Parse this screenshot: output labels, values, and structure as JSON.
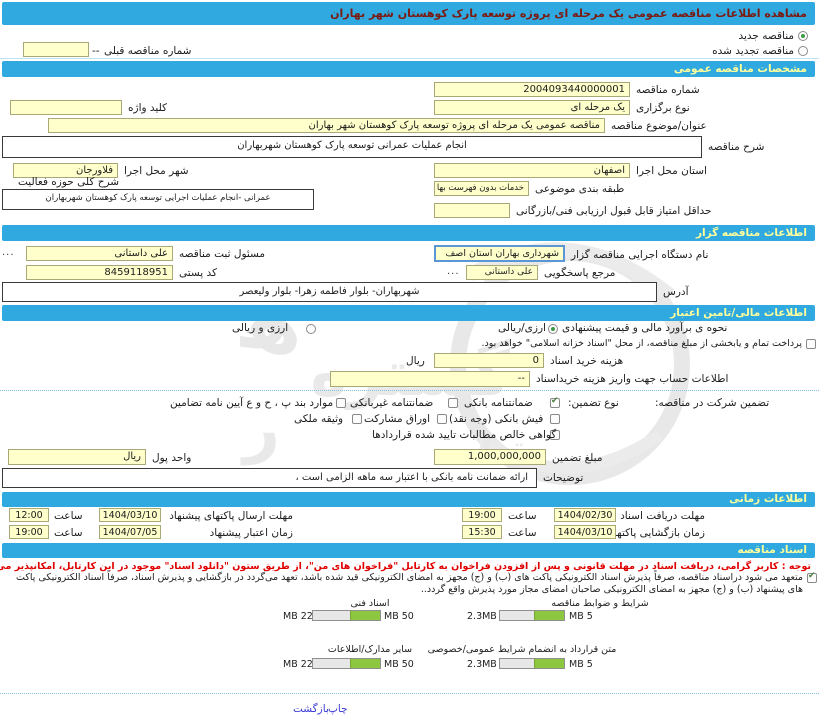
{
  "page": {
    "title": "مشاهده اطلاعات مناقصه عمومی یک مرحله ای پروژه توسعه پارک کوهستان شهر بهاران",
    "print_label": "چاپ",
    "back_label": "بازگشت",
    "ellipsis": "..."
  },
  "colors": {
    "banner_blue": "#2FA9E0",
    "banner_title": "#7B1A10",
    "banner_section_text": "#FFFF9C",
    "field_yellow": "#FFFFCC",
    "notice_red": "#E00000",
    "bar_green": "#8DC63F"
  },
  "tender_type": {
    "new_label": "مناقصه جدید",
    "new_selected": true,
    "renewed_label": "مناقصه تجدید شده",
    "renewed_selected": false,
    "previous_number_label": "شماره مناقصه قبلی",
    "previous_number_value": "--"
  },
  "specs": {
    "header": "مشخصات مناقصه عمومی",
    "number_label": "شماره مناقصه",
    "number_value": "2004093440000001",
    "type_label": "نوع برگزاری",
    "type_value": "یک مرحله ای",
    "keyword_label": "کلید واژه",
    "keyword_value": "",
    "subject_label": "عنوان/موضوع مناقصه",
    "subject_value": "مناقصه عمومی یک مرحله ای پروژه توسعه پارک کوهستان شهر بهاران",
    "desc_label": "شرح مناقصه",
    "desc_value": "انجام عملیات عمرانی توسعه پارک کوهستان شهربهاران",
    "province_label": "استان محل اجرا",
    "province_value": "اصفهان",
    "city_label": "شهر محل اجرا",
    "city_value": "فلاورجان",
    "category_label": "طبقه بندی موضوعی",
    "category_value": "خدمات بدون فهرست بها",
    "activity_label": "شرح کلی حوزه فعالیت",
    "activity_value": "عمرانی -انجام عملیات اجرایی توسعه پارک کوهستان شهربهاران",
    "min_score_label": "حداقل امتیاز قابل قبول ارزیابی فنی/بازرگانی",
    "min_score_value": ""
  },
  "agency": {
    "header": "اطلاعات مناقصه گزار",
    "name_label": "نام دستگاه اجرایی مناقصه گزار",
    "name_value": "شهرداری بهاران استان اصف",
    "registrar_label": "مسئول ثبت مناقصه",
    "registrar_value": "علی داستانی",
    "contact_label": "مرجع پاسخگویی",
    "contact_value": "علی داستانی",
    "postal_label": "کد پستی",
    "postal_value": "8459118951",
    "address_label": "آدرس",
    "address_value": "شهربهاران- بلوار فاطمه زهرا- بلوار ولیعصر"
  },
  "financial": {
    "header": "اطلاعات مالی/تامین اعتبار",
    "estimate_label": "نحوه ی برآورد مالی و قیمت پیشنهادی",
    "option_rial": {
      "label": "ارزی/ریالی",
      "selected": true
    },
    "option_both": {
      "label": "ارزی و ریالی",
      "selected": false
    },
    "treasury_note": {
      "label": "پرداخت تمام و یابخشی از مبلغ مناقصه، از محل \"اسناد خزانه اسلامی\" خواهد بود.",
      "checked": false
    },
    "doc_cost_label": "هزینه خرید اسناد",
    "doc_cost_value": "0",
    "doc_cost_unit": "ریال",
    "account_label": "اطلاعات حساب جهت واریز هزینه خریداسناد",
    "account_value": "--"
  },
  "guarantee": {
    "participation_label": "تضمین شرکت در مناقصه:",
    "type_label": "نوع تضمین:",
    "options": [
      {
        "label": "ضمانتنامه بانکی",
        "checked": true
      },
      {
        "label": "ضمانتنامه غیربانکی",
        "checked": false
      },
      {
        "label": "موارد بند پ ، ح و ع آیین نامه تضامین",
        "checked": false
      },
      {
        "label": "فیش بانکی (وجه نقد)",
        "checked": false
      },
      {
        "label": "اوراق مشارکت",
        "checked": false
      },
      {
        "label": "وثیقه ملکی",
        "checked": false
      },
      {
        "label": "گواهی خالص مطالبات تایید شده قراردادها",
        "checked": false
      }
    ],
    "amount_label": "مبلغ تضمین",
    "amount_value": "1,000,000,000",
    "currency_label": "واحد پول",
    "currency_value": "ریال",
    "notes_label": "توضیحات",
    "notes_value": "ارائه ضمانت نامه بانکی با اعتبار سه ماهه الزامی است ،"
  },
  "schedule": {
    "header": "اطلاعات زمانی",
    "hour_label": "ساعت",
    "rows": [
      {
        "label": "مهلت دریافت اسناد",
        "date": "1404/02/30",
        "time": "19:00"
      },
      {
        "label": "مهلت ارسال پاکتهای پیشنهاد",
        "date": "1404/03/10",
        "time": "12:00"
      },
      {
        "label": "زمان بازگشایی پاکتها",
        "date": "1404/03/10",
        "time": "15:30"
      },
      {
        "label": "زمان اعتبار پیشنهاد",
        "date": "1404/07/05",
        "time": "19:00"
      }
    ]
  },
  "documents": {
    "header": "اسناد مناقصه",
    "notice": "توجه : کاربر گرامی، دریافت اسناد در مهلت قانونی و پس از افزودن فراخوان به کارتابل \"فراخوان های من\"، از طریق ستون \"دانلود اسناد\" موجود در این کارتابل، امکانپذیر می‌باشد.",
    "commitment": {
      "checked": true,
      "text": "متعهد می شود دراسناد مناقصه، صرفاً پذیرش اسناد الکترونیکی پاکت های (ب) و (ج) مجهز به امضای الکترونیکی قید شده باشد، تعهد می‌گردد در بازگشایی و پذیرش اسناد، صرفاً اسناد الکترونیکی پاکت های پیشنهاد (ب) و (ج) مجهز به امضای الکترونیکی صاحبان امضای مجاز مورد پذیرش واقع گردد.."
    },
    "uploads": [
      {
        "label": "شرایط و ضوابط مناقصه",
        "used": "2.3MB",
        "max": "5 MB",
        "pct": 46
      },
      {
        "label": "اسناد فنی",
        "used": "22 MB",
        "max": "50 MB",
        "pct": 44
      },
      {
        "label": "متن قرارداد به انضمام شرایط عمومی/خصوصی",
        "used": "2.3MB",
        "max": "5 MB",
        "pct": 46
      },
      {
        "label": "سایر مدارک/اطلاعات",
        "used": "22 MB",
        "max": "50 MB",
        "pct": 44
      }
    ]
  }
}
